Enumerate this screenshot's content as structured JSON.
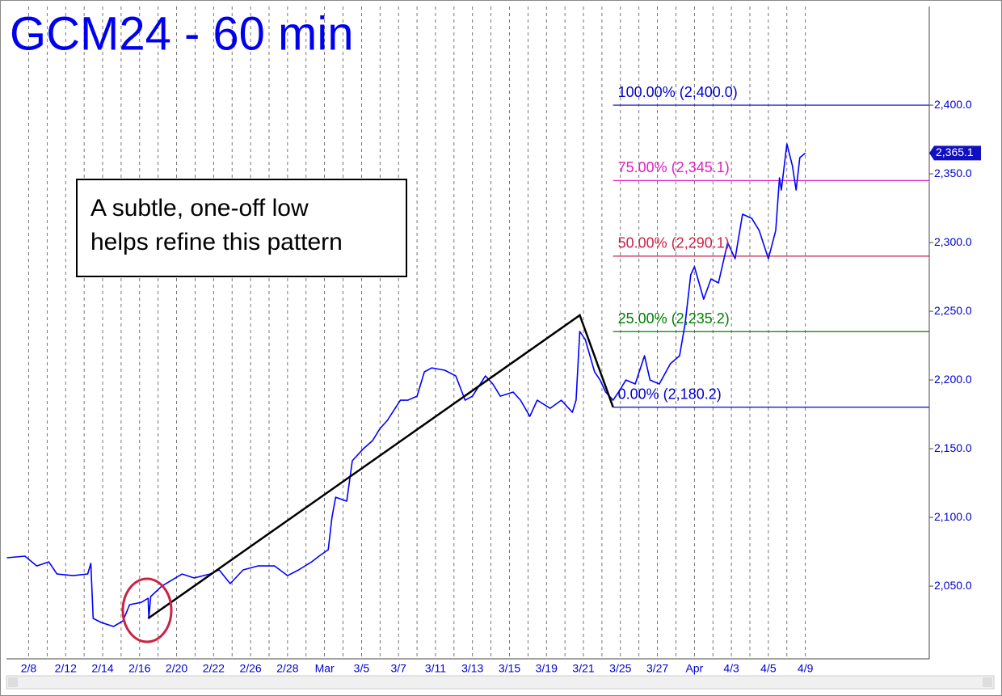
{
  "chart_data": {
    "type": "line",
    "title": "GCM24 - 60 min",
    "annotation": [
      "A subtle, one-off low",
      "helps refine this pattern"
    ],
    "grid": true,
    "color": "#0000ff",
    "xlim": [
      -1.2,
      48.7
    ],
    "ylim": [
      1997.1,
      2471.8
    ],
    "xticks": [
      {
        "value": 0,
        "label": "2/8"
      },
      {
        "value": 1,
        "label": null
      },
      {
        "value": 2,
        "label": "2/12"
      },
      {
        "value": 3,
        "label": null
      },
      {
        "value": 4,
        "label": "2/14"
      },
      {
        "value": 5,
        "label": null
      },
      {
        "value": 6,
        "label": "2/16"
      },
      {
        "value": 7,
        "label": null
      },
      {
        "value": 8,
        "label": "2/20"
      },
      {
        "value": 9,
        "label": null
      },
      {
        "value": 10,
        "label": "2/22"
      },
      {
        "value": 11,
        "label": null
      },
      {
        "value": 12,
        "label": "2/26"
      },
      {
        "value": 13,
        "label": null
      },
      {
        "value": 14,
        "label": "2/28"
      },
      {
        "value": 15,
        "label": null
      },
      {
        "value": 16,
        "label": "Mar"
      },
      {
        "value": 17,
        "label": null
      },
      {
        "value": 18,
        "label": "3/5"
      },
      {
        "value": 19,
        "label": null
      },
      {
        "value": 20,
        "label": "3/7"
      },
      {
        "value": 21,
        "label": null
      },
      {
        "value": 22,
        "label": "3/11"
      },
      {
        "value": 23,
        "label": null
      },
      {
        "value": 24,
        "label": "3/13"
      },
      {
        "value": 25,
        "label": null
      },
      {
        "value": 26,
        "label": "3/15"
      },
      {
        "value": 27,
        "label": null
      },
      {
        "value": 28,
        "label": "3/19"
      },
      {
        "value": 29,
        "label": null
      },
      {
        "value": 30,
        "label": "3/21"
      },
      {
        "value": 31,
        "label": null
      },
      {
        "value": 32,
        "label": "3/25"
      },
      {
        "value": 33,
        "label": null
      },
      {
        "value": 34,
        "label": "3/27"
      },
      {
        "value": 35,
        "label": null
      },
      {
        "value": 36,
        "label": "Apr"
      },
      {
        "value": 37,
        "label": null
      },
      {
        "value": 38,
        "label": "4/3"
      },
      {
        "value": 39,
        "label": null
      },
      {
        "value": 40,
        "label": "4/5"
      },
      {
        "value": 41,
        "label": null
      },
      {
        "value": 42,
        "label": "4/9"
      }
    ],
    "yticks": [
      {
        "value": 2050,
        "label": "2,050.0"
      },
      {
        "value": 2100,
        "label": "2,100.0"
      },
      {
        "value": 2150,
        "label": "2,150.0"
      },
      {
        "value": 2200,
        "label": "2,200.0"
      },
      {
        "value": 2250,
        "label": "2,250.0"
      },
      {
        "value": 2300,
        "label": "2,300.0"
      },
      {
        "value": 2350,
        "label": "2,350.0"
      },
      {
        "value": 2400,
        "label": "2,400.0"
      }
    ],
    "x": [
      -1.18,
      -0.2,
      0.44,
      1.09,
      1.53,
      2.4,
      3.19,
      3.36,
      3.49,
      3.93,
      4.59,
      5.1,
      5.46,
      6.1,
      6.46,
      6.5,
      6.6,
      7.2,
      8.3,
      8.95,
      9.8,
      10.3,
      10.9,
      11.6,
      12.4,
      13.3,
      14.0,
      14.6,
      15.3,
      15.7,
      16.2,
      16.4,
      16.6,
      17.2,
      17.5,
      18.1,
      18.6,
      19.0,
      19.4,
      20.1,
      20.5,
      21.0,
      21.4,
      21.8,
      22.5,
      23.1,
      23.6,
      24.0,
      24.7,
      25.1,
      25.5,
      26.2,
      26.6,
      27.1,
      27.5,
      28.2,
      28.8,
      29.4,
      29.6,
      29.8,
      30.1,
      30.6,
      30.9,
      31.2,
      31.6,
      31.9,
      32.3,
      32.8,
      33.3,
      33.6,
      34.1,
      34.7,
      35.2,
      35.5,
      35.8,
      36.0,
      36.5,
      36.9,
      37.3,
      37.8,
      38.2,
      38.6,
      39.1,
      39.5,
      40.0,
      40.4,
      40.6,
      40.7,
      41.0,
      41.3,
      41.5,
      41.7,
      42.0
    ],
    "values": [
      2070.6,
      2071.8,
      2064.7,
      2067.6,
      2058.8,
      2057.6,
      2058.8,
      2066.5,
      2026.5,
      2023.5,
      2020.6,
      2024.7,
      2036.5,
      2038.2,
      2041.2,
      2026.5,
      2042.4,
      2050,
      2058.8,
      2055.9,
      2058.8,
      2061.8,
      2051.8,
      2061.8,
      2064.7,
      2064.7,
      2057.6,
      2061.8,
      2067.6,
      2071.8,
      2076.5,
      2100,
      2114.7,
      2111.8,
      2141.2,
      2150,
      2155.9,
      2164.7,
      2170.6,
      2185.3,
      2185.3,
      2188.2,
      2205.9,
      2208.8,
      2207.1,
      2202.9,
      2185.3,
      2188.2,
      2202.9,
      2197.1,
      2188.2,
      2191.2,
      2185.3,
      2173.5,
      2185.3,
      2179.4,
      2185.3,
      2176.5,
      2185.3,
      2235.3,
      2229.4,
      2205.9,
      2200,
      2191.2,
      2185.3,
      2191.2,
      2200,
      2197.1,
      2217.6,
      2200,
      2197.1,
      2211.8,
      2217.6,
      2241.2,
      2276.5,
      2282.4,
      2258.8,
      2273.5,
      2270.6,
      2300,
      2288.2,
      2320.6,
      2317.6,
      2308.8,
      2288.2,
      2308.8,
      2347.1,
      2338.2,
      2371.8,
      2355.9,
      2338.2,
      2361.8,
      2365.1
    ],
    "last_value": {
      "value": 2365.1,
      "label": "2,365.1"
    },
    "levels_start": 31.6,
    "levels": [
      {
        "value": 2400.0,
        "label": "100.00% (2,400.0)",
        "color": "#0000cc"
      },
      {
        "value": 2345.1,
        "label": "75.00% (2,345.1)",
        "color": "#e020c0"
      },
      {
        "value": 2290.1,
        "label": "50.00% (2,290.1)",
        "color": "#cc2244"
      },
      {
        "value": 2235.2,
        "label": "25.00% (2,235.2)",
        "color": "#008000"
      },
      {
        "value": 2180.2,
        "label": "0.00% (2,180.2)",
        "color": "#0000cc"
      }
    ],
    "pattern_line": {
      "x": [
        6.46,
        29.8,
        31.6
      ],
      "values": [
        2026.5,
        2247.1,
        2180.2
      ],
      "color": "#000000"
    }
  }
}
